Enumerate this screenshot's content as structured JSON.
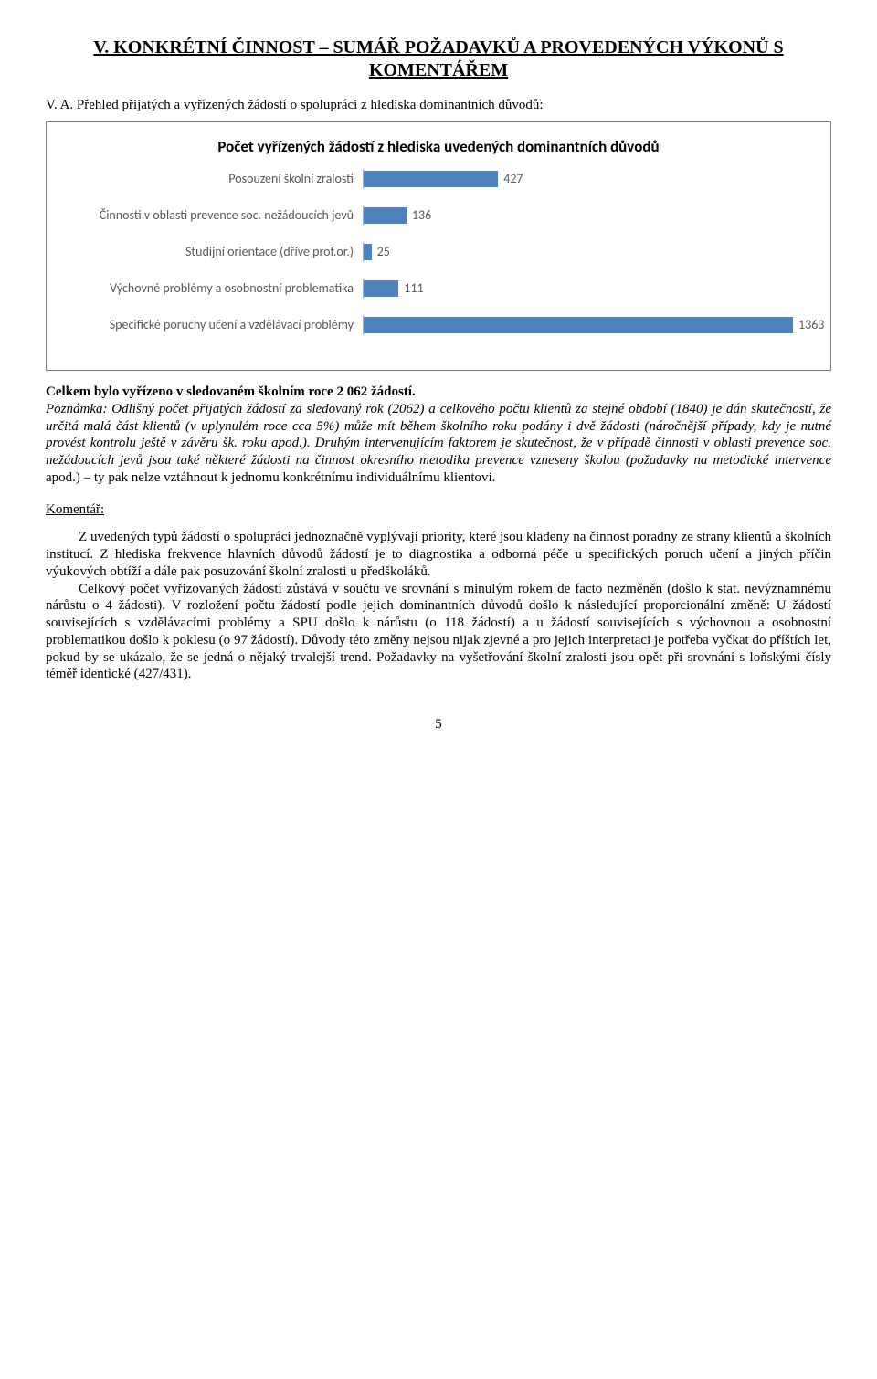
{
  "title": "V. KONKRÉTNÍ ČINNOST – SUMÁŘ POŽADAVKŮ A PROVEDENÝCH VÝKONŮ S KOMENTÁŘEM",
  "subtitle": "V. A. Přehled přijatých a vyřízených žádostí o spolupráci z hlediska dominantních důvodů:",
  "chart": {
    "title": "Počet vyřízených žádostí z hlediska uvedených dominantních důvodů",
    "max": 1363,
    "bar_color": "#4f81bd",
    "label_color": "#595959",
    "items": [
      {
        "label": "Posouzení školní zralosti",
        "value": 427
      },
      {
        "label": "Činnosti v oblasti prevence soc. nežádoucích jevů",
        "value": 136
      },
      {
        "label": "Studijní orientace (dříve prof.or.)",
        "value": 25
      },
      {
        "label": "Výchovné problémy a osobnostní problematika",
        "value": 111
      },
      {
        "label": "Specifické poruchy učení a vzdělávací problémy",
        "value": 1363
      }
    ]
  },
  "summary_bold": "Celkem bylo vyřízeno v sledovaném školním roce 2 062 žádostí.",
  "summary_italic_1": "Poznámka: Odlišný počet přijatých žádostí za sledovaný rok (2062) a celkového počtu klientů za stejné období (1840) je dán skutečností, že určitá malá část klientů (v uplynulém roce cca  5%) může mít během školního roku podány i dvě žádosti (náročnější případy, kdy je nutné provést kontrolu ještě v závěru šk. roku apod.). Druhým intervenujícím faktorem je skutečnost, že v případě činnosti v oblasti prevence soc. nežádoucích jevů jsou také některé žádosti na činnost okresního metodika prevence vzneseny školou (požadavky na metodické intervence",
  "summary_plain_tail": " apod.) – ty pak nelze vztáhnout k jednomu konkrétnímu individuálnímu klientovi.",
  "komentar_label": "Komentář:",
  "para1": "Z uvedených typů žádostí o spolupráci jednoznačně vyplývají priority, které jsou kladeny na činnost poradny ze strany klientů a školních institucí. Z hlediska frekvence hlavních důvodů žádostí je to diagnostika a odborná péče u specifických poruch učení a jiných příčin výukových obtíží a dále pak posuzování školní zralosti u předškoláků.",
  "para2": "Celkový počet vyřizovaných žádostí zůstává v součtu ve srovnání s minulým rokem de facto nezměněn (došlo k stat. nevýznamnému nárůstu o 4 žádosti). V rozložení počtu žádostí podle jejich dominantních důvodů došlo k následující proporcionální změně: U žádostí souvisejících s vzdělávacími problémy a SPU došlo k nárůstu (o 118 žádostí) a u žádostí souvisejících s výchovnou a osobnostní problematikou došlo k poklesu (o 97 žádostí). Důvody této změny nejsou nijak zjevné a pro jejich interpretaci je potřeba vyčkat do příštích let, pokud by se ukázalo, že se jedná o nějaký trvalejší trend. Požadavky na vyšetřování školní zralosti jsou opět při srovnání s loňskými čísly téměř identické (427/431).",
  "page_number": "5"
}
